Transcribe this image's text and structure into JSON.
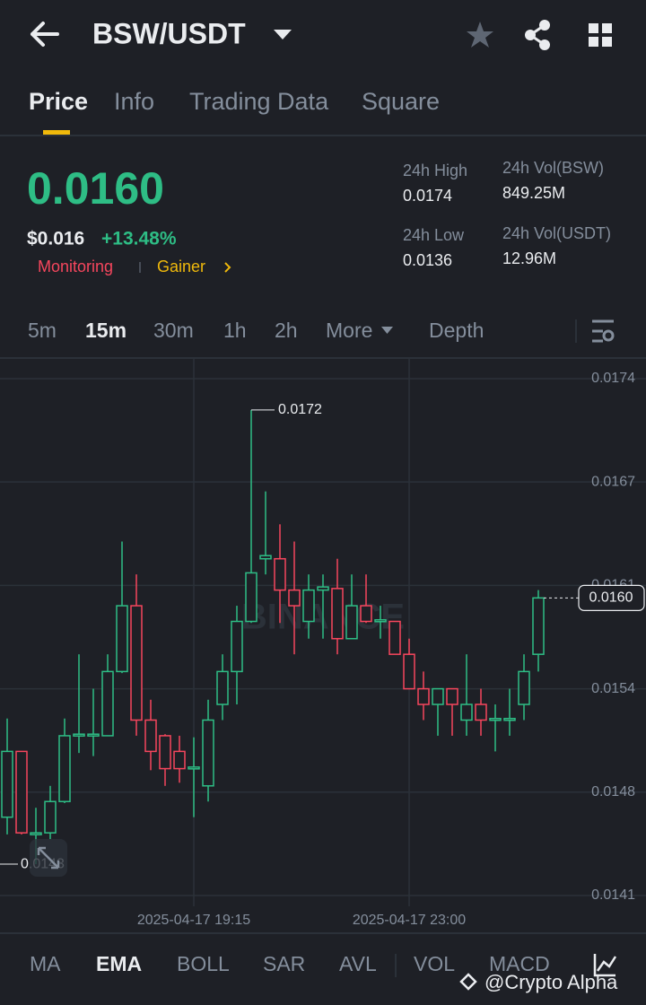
{
  "header": {
    "pair": "BSW/USDT"
  },
  "tabs": [
    "Price",
    "Info",
    "Trading Data",
    "Square"
  ],
  "ticker": {
    "price": "0.0160",
    "usd_price": "$0.016",
    "change": "+13.48%",
    "tags": [
      "Monitoring",
      "Gainer"
    ],
    "stats": [
      {
        "label": "24h High",
        "value": "0.0174"
      },
      {
        "label": "24h Vol(BSW)",
        "value": "849.25M"
      },
      {
        "label": "24h Low",
        "value": "0.0136"
      },
      {
        "label": "24h Vol(USDT)",
        "value": "12.96M"
      }
    ]
  },
  "intervals": [
    "5m",
    "15m",
    "30m",
    "1h",
    "2h",
    "More",
    "Depth"
  ],
  "indicators": [
    "MA",
    "EMA",
    "BOLL",
    "SAR",
    "AVL",
    "VOL",
    "MACD"
  ],
  "watermark": "@Crypto Alpha",
  "chart_data": {
    "type": "candlestick",
    "watermark": "BINANCE",
    "categories": [
      null,
      null,
      null,
      null,
      null,
      null,
      null,
      null,
      null,
      null,
      null,
      null,
      null,
      "2025-04-17 19:15",
      null,
      null,
      null,
      null,
      null,
      null,
      null,
      null,
      null,
      null,
      null,
      null,
      null,
      null,
      "2025-04-17 23:00",
      null,
      null,
      null,
      null,
      null,
      null,
      null,
      null,
      null
    ],
    "open": [
      0.0146,
      0.01502,
      0.01449,
      0.0145,
      0.0147,
      0.01512,
      0.01512,
      0.01512,
      0.01553,
      0.01595,
      0.01522,
      0.01512,
      0.01502,
      0.01491,
      0.0148,
      0.01532,
      0.01553,
      0.01585,
      0.01625,
      0.01625,
      0.01605,
      0.01585,
      0.01605,
      0.01606,
      0.01574,
      0.01595,
      0.01585,
      0.01585,
      0.01564,
      0.01542,
      0.01532,
      0.01542,
      0.01522,
      0.01532,
      0.01522,
      0.01522,
      0.01532,
      0.01564
    ],
    "high": [
      0.01523,
      0.01502,
      0.01466,
      0.0148,
      0.01523,
      0.01564,
      0.01542,
      0.01564,
      0.01636,
      0.01615,
      0.01535,
      0.01513,
      0.01512,
      0.01511,
      0.01535,
      0.01564,
      0.01595,
      0.0172,
      0.01668,
      0.01647,
      0.01636,
      0.01615,
      0.01615,
      0.01625,
      0.01615,
      0.01615,
      0.01595,
      0.01585,
      0.01574,
      0.01553,
      0.01542,
      0.01542,
      0.01564,
      0.01542,
      0.01532,
      0.01542,
      0.01564,
      0.01605
    ],
    "low": [
      0.01449,
      0.01449,
      0.0143,
      0.01446,
      0.01469,
      0.01501,
      0.01499,
      0.01512,
      0.01552,
      0.01512,
      0.0149,
      0.0148,
      0.01482,
      0.0146,
      0.0147,
      0.01522,
      0.01532,
      0.01584,
      0.01615,
      0.01584,
      0.01564,
      0.01574,
      0.01574,
      0.01564,
      0.01574,
      0.01584,
      0.01574,
      0.01564,
      0.01542,
      0.01522,
      0.01512,
      0.01512,
      0.01512,
      0.01512,
      0.01502,
      0.01512,
      0.01522,
      0.01553
    ],
    "close": [
      0.01502,
      0.0145,
      0.0145,
      0.0147,
      0.01512,
      0.01513,
      0.01513,
      0.01553,
      0.01595,
      0.01522,
      0.01502,
      0.01491,
      0.01491,
      0.01492,
      0.01522,
      0.01553,
      0.01585,
      0.01616,
      0.01627,
      0.01605,
      0.01595,
      0.01605,
      0.01607,
      0.01574,
      0.01595,
      0.01585,
      0.01586,
      0.01564,
      0.01542,
      0.01532,
      0.01542,
      0.01532,
      0.01532,
      0.01522,
      0.01523,
      0.01523,
      0.01553,
      0.016
    ],
    "last_price_label": "0.0160",
    "ylim": [
      0.014031,
      0.017526
    ],
    "yticks": [
      {
        "value": 0.0174,
        "label": "0.0174"
      },
      {
        "value": 0.01674,
        "label": "0.0167"
      },
      {
        "value": 0.01608,
        "label": "0.0161"
      },
      {
        "value": 0.01542,
        "label": "0.0154"
      },
      {
        "value": 0.01476,
        "label": "0.0148"
      },
      {
        "value": 0.0141,
        "label": "0.0141"
      }
    ],
    "up_color": "#2ebd85",
    "down_color": "#f6465d",
    "grid": true
  }
}
